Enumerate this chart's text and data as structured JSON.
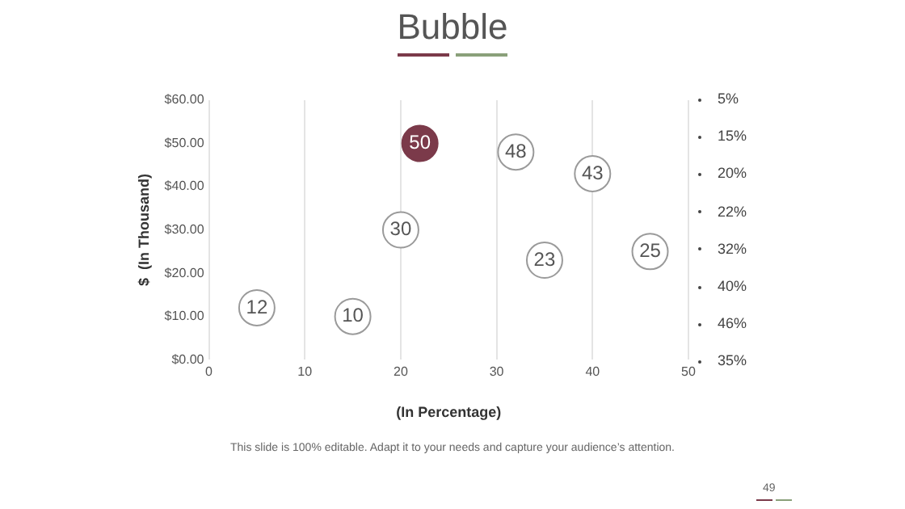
{
  "chart_data": {
    "type": "bubble",
    "title": "Bubble",
    "xlabel": "(In Percentage)",
    "ylabel": "$  (In Thousand)",
    "x": [
      5,
      15,
      20,
      22,
      32,
      40,
      35,
      46
    ],
    "values": [
      12,
      10,
      30,
      50,
      48,
      43,
      23,
      25
    ],
    "sizes": [
      1,
      1,
      1,
      1,
      1,
      1,
      1,
      1
    ],
    "colors": [
      "#ffffff",
      "#ffffff",
      "#ffffff",
      "#7b3a4a",
      "#ffffff",
      "#ffffff",
      "#ffffff",
      "#ffffff"
    ],
    "data_labels": true,
    "xlim": [
      0,
      50
    ],
    "xticks": [
      0,
      10,
      20,
      30,
      40,
      50
    ],
    "ylim": [
      0,
      60
    ],
    "yticks": [
      {
        "value": 0,
        "label": "$0.00"
      },
      {
        "value": 10,
        "label": "$10.00"
      },
      {
        "value": 20,
        "label": "$20.00"
      },
      {
        "value": 30,
        "label": "$30.00"
      },
      {
        "value": 40,
        "label": "$40.00"
      },
      {
        "value": 50,
        "label": "$50.00"
      },
      {
        "value": 60,
        "label": "$60.00"
      }
    ],
    "grid": "x",
    "legend": false,
    "annotations": [
      "5%",
      "15%",
      "20%",
      "22%",
      "32%",
      "40%",
      "46%",
      "35%",
      "This slide is 100% editable. Adapt it to your needs and capture your audience’s attention.",
      "49"
    ]
  }
}
